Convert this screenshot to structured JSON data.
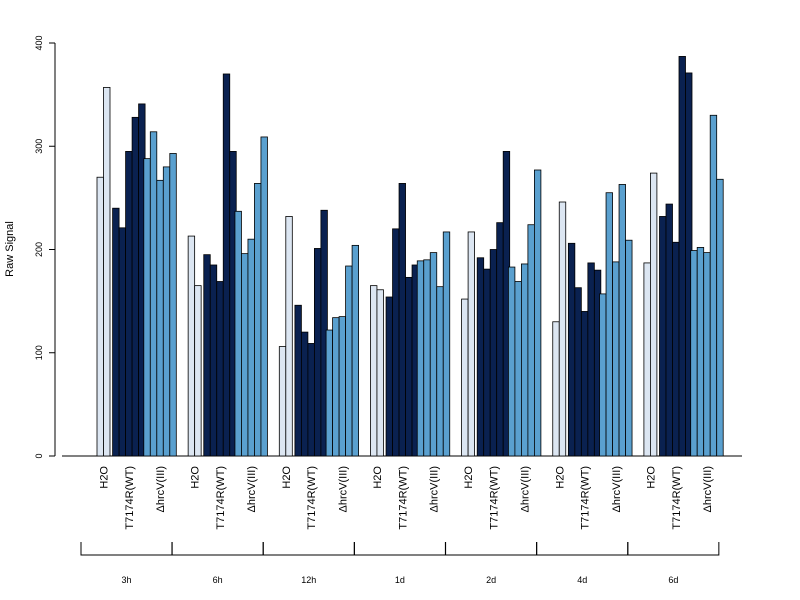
{
  "chart_data": {
    "type": "bar",
    "ylabel": "Raw Signal",
    "xlabel": "",
    "title": "",
    "ylim": [
      0,
      400
    ],
    "yticks": [
      0,
      100,
      200,
      300,
      400
    ],
    "group_labels": [
      "H2O",
      "T7174R(WT)",
      "ΔhrcV(III)"
    ],
    "colors": {
      "H2O": "#dce6f2",
      "T7174R(WT)": "#0a2150",
      "ΔhrcV(III)": "#5aa0cf"
    },
    "groups": [
      {
        "name": "3h",
        "H2O": [
          270,
          357
        ],
        "T7174R(WT)": [
          240,
          221,
          295,
          328,
          341
        ],
        "ΔhrcV(III)": [
          288,
          314,
          267,
          280,
          293
        ]
      },
      {
        "name": "6h",
        "H2O": [
          213,
          165
        ],
        "T7174R(WT)": [
          195,
          185,
          169,
          370,
          295
        ],
        "ΔhrcV(III)": [
          237,
          196,
          210,
          264,
          309
        ]
      },
      {
        "name": "12h",
        "H2O": [
          106,
          232
        ],
        "T7174R(WT)": [
          146,
          120,
          109,
          201,
          238
        ],
        "ΔhrcV(III)": [
          122,
          134,
          135,
          184,
          204
        ]
      },
      {
        "name": "1d",
        "H2O": [
          165,
          161
        ],
        "T7174R(WT)": [
          154,
          220,
          264,
          173,
          185
        ],
        "ΔhrcV(III)": [
          189,
          190,
          197,
          164,
          217
        ]
      },
      {
        "name": "2d",
        "H2O": [
          152,
          217
        ],
        "T7174R(WT)": [
          192,
          181,
          200,
          226,
          295
        ],
        "ΔhrcV(III)": [
          183,
          169,
          186,
          224,
          277
        ]
      },
      {
        "name": "4d",
        "H2O": [
          130,
          246
        ],
        "T7174R(WT)": [
          206,
          163,
          140,
          187,
          180
        ],
        "ΔhrcV(III)": [
          157,
          255,
          188,
          263,
          209
        ]
      },
      {
        "name": "6d",
        "H2O": [
          187,
          274
        ],
        "T7174R(WT)": [
          232,
          244,
          207,
          387,
          371
        ],
        "ΔhrcV(III)": [
          199,
          202,
          197,
          330,
          268
        ]
      }
    ]
  }
}
